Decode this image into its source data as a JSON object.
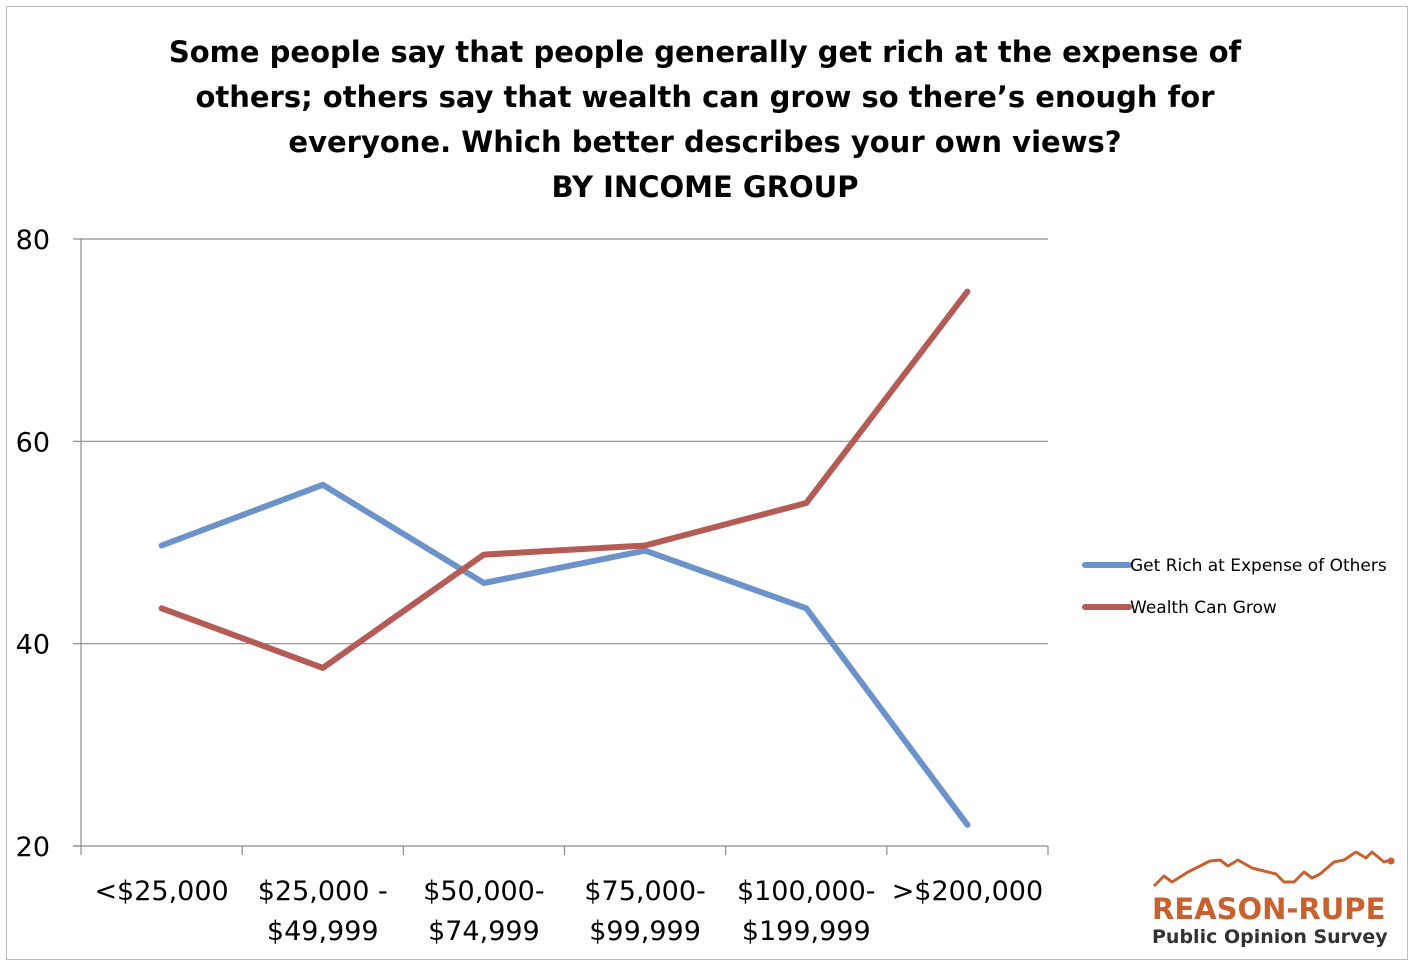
{
  "chart_data": {
    "type": "line",
    "title_lines": [
      "Some people say that people generally get rich at the expense of",
      "others; others say that wealth can grow so there’s enough for",
      "everyone. Which better describes your own views?",
      "BY INCOME GROUP"
    ],
    "categories": [
      [
        "<$25,000"
      ],
      [
        "$25,000 -",
        "$49,999"
      ],
      [
        "$50,000-",
        "$74,999"
      ],
      [
        "$75,000-",
        "$99,999"
      ],
      [
        "$100,000-",
        "$199,999"
      ],
      [
        ">$200,000"
      ]
    ],
    "y_ticks": [
      20,
      40,
      60,
      80
    ],
    "ylim": [
      20,
      80
    ],
    "grid": true,
    "legend_position": "right",
    "series": [
      {
        "name": "Get Rich at Expense of Others",
        "color": "#6b93c9",
        "values": [
          49.7,
          55.7,
          46,
          49.2,
          43.5,
          22.1
        ]
      },
      {
        "name": "Wealth Can Grow",
        "color": "#b55b56",
        "values": [
          43.5,
          37.6,
          48.8,
          49.7,
          53.9,
          74.8
        ]
      }
    ]
  },
  "logo": {
    "name": "REASON-RUPE",
    "subtitle": "Public Opinion Survey",
    "color": "#c8612e"
  }
}
